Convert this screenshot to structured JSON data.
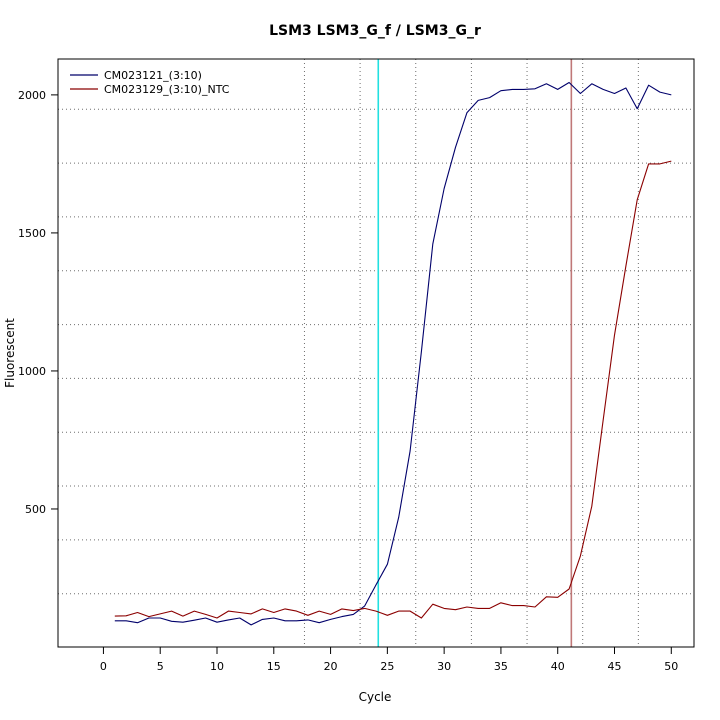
{
  "chart_data": {
    "type": "line",
    "title": "LSM3  LSM3_G_f / LSM3_G_r",
    "xlabel": "Cycle",
    "ylabel": "Fluorescent",
    "xlim": [
      -4,
      52
    ],
    "ylim": [
      0,
      2130
    ],
    "x_ticks": [
      0,
      5,
      10,
      15,
      20,
      25,
      30,
      35,
      40,
      45,
      50
    ],
    "y_ticks": [
      500,
      1000,
      1500,
      2000
    ],
    "grid": true,
    "grid_x": [
      17.7,
      22.6,
      27.5,
      32.4,
      37.3,
      42.2,
      47.1
    ],
    "grid_y": [
      193,
      388,
      583,
      778,
      973,
      1168,
      1363,
      1558,
      1753,
      1948
    ],
    "legend_position": "top-left",
    "threshold_lines": [
      {
        "cycle": 24.2,
        "color": "#22e0e0"
      },
      {
        "cycle": 41.2,
        "color": "#c07878"
      }
    ],
    "x": [
      1,
      2,
      3,
      4,
      5,
      6,
      7,
      8,
      9,
      10,
      11,
      12,
      13,
      14,
      15,
      16,
      17,
      18,
      19,
      20,
      21,
      22,
      23,
      24,
      25,
      26,
      27,
      28,
      29,
      30,
      31,
      32,
      33,
      34,
      35,
      36,
      37,
      38,
      39,
      40,
      41,
      42,
      43,
      44,
      45,
      46,
      47,
      48,
      49,
      50
    ],
    "series": [
      {
        "name": "CM023121_(3:10)",
        "color": "#00006b",
        "values": [
          95,
          95,
          88,
          105,
          105,
          93,
          90,
          97,
          105,
          90,
          98,
          105,
          80,
          100,
          105,
          95,
          95,
          98,
          88,
          100,
          110,
          118,
          148,
          225,
          300,
          470,
          710,
          1070,
          1460,
          1660,
          1810,
          1935,
          1980,
          1990,
          2015,
          2020,
          2020,
          2022,
          2040,
          2020,
          2045,
          2005,
          2040,
          2020,
          2005,
          2025,
          1950,
          2035,
          2010,
          2000
        ]
      },
      {
        "name": "CM023129_(3:10)_NTC",
        "color": "#8b0000",
        "values": [
          112,
          113,
          125,
          110,
          120,
          130,
          112,
          130,
          118,
          105,
          130,
          125,
          120,
          138,
          125,
          138,
          130,
          115,
          130,
          118,
          138,
          132,
          140,
          130,
          115,
          130,
          130,
          105,
          155,
          140,
          135,
          145,
          140,
          140,
          160,
          150,
          150,
          145,
          182,
          180,
          210,
          330,
          510,
          820,
          1130,
          1380,
          1620,
          1750,
          1750,
          1760
        ]
      }
    ]
  }
}
